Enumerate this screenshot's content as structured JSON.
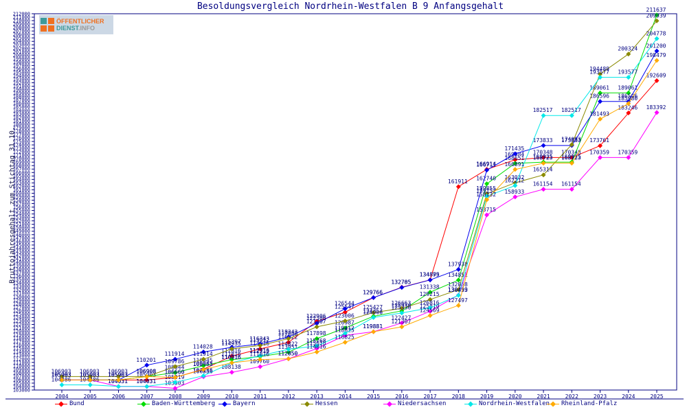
{
  "title": "Besoldungsvergleich Nordrhein-Westfalen B 9 Anfangsgehalt",
  "y_axis_label": "Bruttojahresgehalt zum Stichtag 31.10.",
  "logo": {
    "line1": "ÖFFENTLICHER",
    "brand": "DIENST",
    "tld": ".INFO"
  },
  "chart_data": {
    "type": "line",
    "title": "Besoldungsvergleich Nordrhein-Westfalen B 9 Anfangsgehalt",
    "xlabel": "",
    "ylabel": "Bruttojahresgehalt zum Stichtag 31.10.",
    "x": [
      2004,
      2005,
      2006,
      2007,
      2008,
      2009,
      2010,
      2011,
      2012,
      2013,
      2014,
      2015,
      2016,
      2017,
      2018,
      2019,
      2020,
      2021,
      2022,
      2023,
      2024,
      2025
    ],
    "ylim": [
      103000,
      212000
    ],
    "y_tick_step": 1000,
    "grid": false,
    "legend_position": "bottom",
    "point_labels": true,
    "text_color": "#000080",
    "series": [
      {
        "name": "Bund",
        "color": "#ff0000",
        "values": [
          105903,
          105903,
          105903,
          105903,
          106660,
          109045,
          112816,
          114916,
          116822,
          122906,
          125547,
          129766,
          132785,
          134899,
          161911,
          166914,
          169684,
          170348,
          170348,
          173761,
          183246,
          192609
        ]
      },
      {
        "name": "Baden-Württemberg",
        "color": "#00dd00",
        "values": [
          105903,
          105903,
          105903,
          106908,
          108044,
          110045,
          111816,
          112713,
          113951,
          117898,
          120987,
          124353,
          125930,
          131338,
          134851,
          162740,
          168651,
          169025,
          169025,
          189061,
          189061,
          211637
        ]
      },
      {
        "name": "Bayern",
        "color": "#0000ee",
        "values": [
          105903,
          105903,
          105903,
          110201,
          111914,
          114028,
          115397,
          116343,
          118343,
          122306,
          126544,
          129766,
          132705,
          134875,
          137938,
          166711,
          171435,
          173833,
          173833,
          186596,
          186596,
          201200
        ]
      },
      {
        "name": "Hessen",
        "color": "#8a8a00",
        "values": [
          106903,
          106903,
          106903,
          106908,
          109786,
          111914,
          114935,
          115912,
          117888,
          121307,
          123006,
          125427,
          126663,
          129215,
          132058,
          159855,
          163032,
          165314,
          174083,
          194489,
          200324,
          209939
        ]
      },
      {
        "name": "Niedersachsen",
        "color": "#ff00ff",
        "values": [
          105903,
          105903,
          104031,
          104031,
          103503,
          106856,
          108138,
          109760,
          112050,
          115016,
          118825,
          119881,
          122427,
          125810,
          130499,
          153715,
          158933,
          161154,
          161154,
          170359,
          170359,
          183392
        ]
      },
      {
        "name": "Nordrhein-Westfalen",
        "color": "#00e8e8",
        "values": [
          104486,
          104486,
          104031,
          104031,
          105219,
          107136,
          110916,
          112916,
          114822,
          115768,
          119412,
          124006,
          125330,
          126816,
          130433,
          159152,
          162212,
          182517,
          182517,
          193577,
          193577,
          204778
        ]
      },
      {
        "name": "Rheinland-Pfalz",
        "color": "#ffaa00",
        "values": [
          105903,
          105903,
          105903,
          106908,
          106660,
          108953,
          110916,
          111816,
          112050,
          114016,
          116825,
          119881,
          121307,
          124569,
          127497,
          158132,
          166891,
          168723,
          168723,
          181493,
          185980,
          198479
        ]
      }
    ]
  }
}
